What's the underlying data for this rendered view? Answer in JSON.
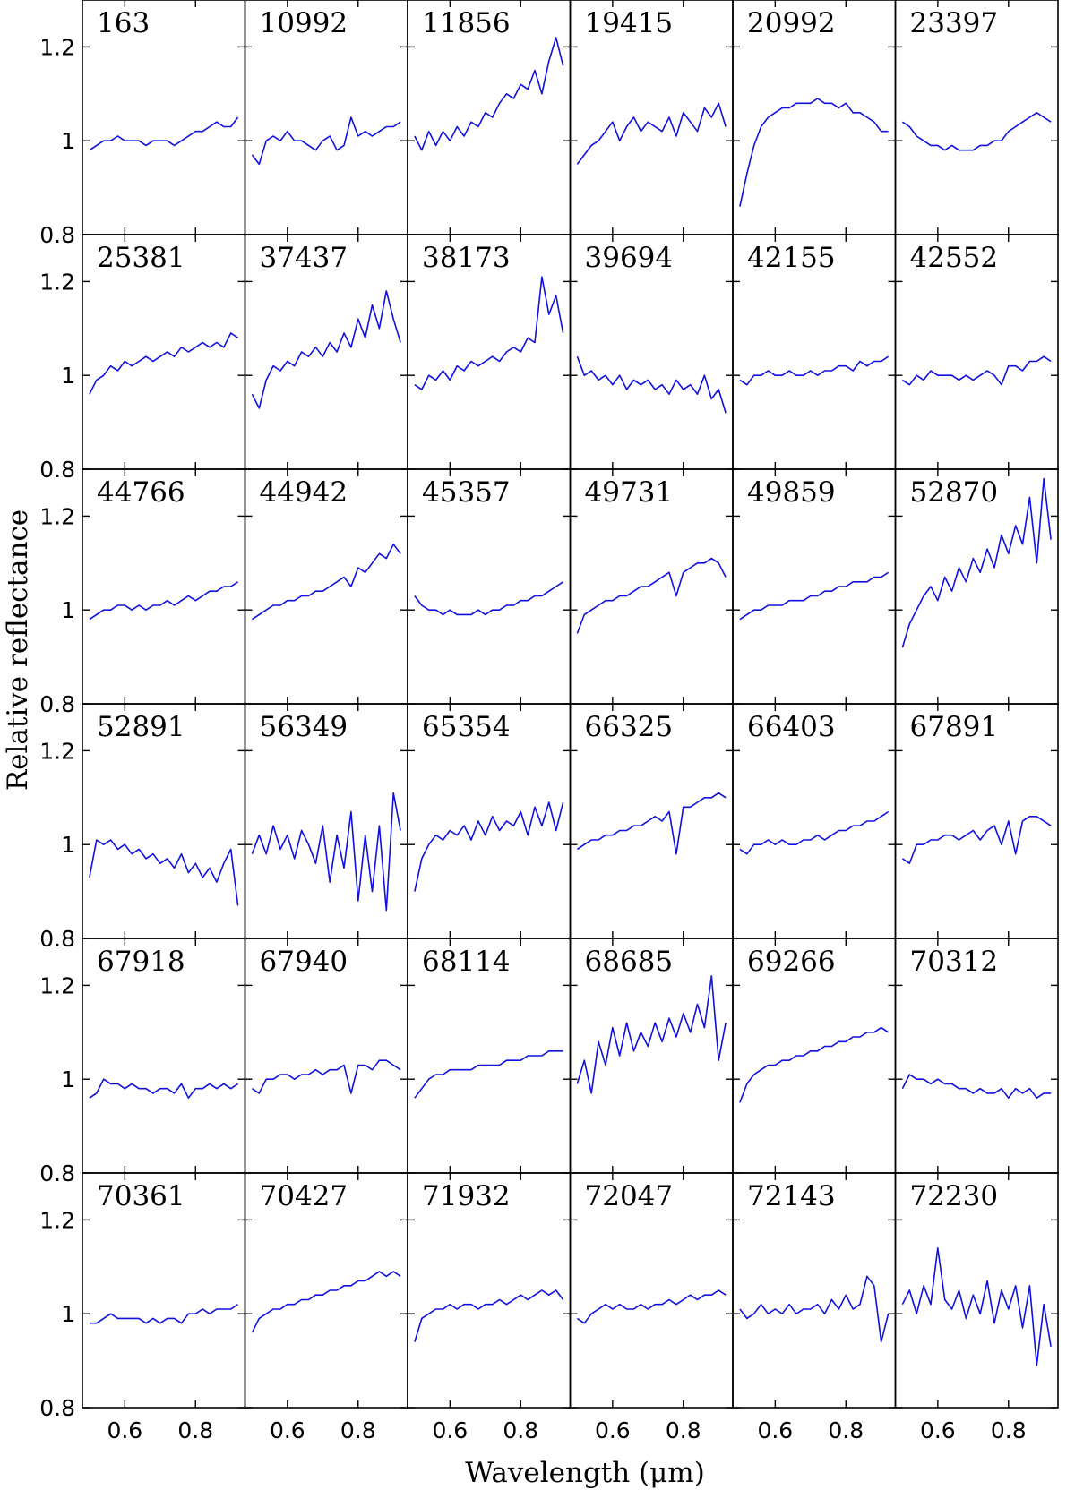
{
  "chart_data": {
    "type": "line",
    "layout": "small-multiples",
    "grid": false,
    "rows": 6,
    "cols": 6,
    "xlabel": "Wavelength (μm)",
    "ylabel": "Relative reflectance",
    "xlim": [
      0.48,
      0.94
    ],
    "ylim": [
      0.8,
      1.3
    ],
    "xticks": [
      0.6,
      0.8
    ],
    "xtick_labels": [
      "0.6",
      "0.8"
    ],
    "yticks": [
      0.8,
      1.0,
      1.2
    ],
    "ytick_labels": [
      "0.8",
      "1",
      "1.2"
    ],
    "line_color": "#1010e0",
    "x": [
      0.5,
      0.52,
      0.54,
      0.56,
      0.58,
      0.6,
      0.62,
      0.64,
      0.66,
      0.68,
      0.7,
      0.72,
      0.74,
      0.76,
      0.78,
      0.8,
      0.82,
      0.84,
      0.86,
      0.88,
      0.9,
      0.92
    ],
    "panels": [
      {
        "name": "163",
        "values": [
          0.98,
          0.99,
          1.0,
          1.0,
          1.01,
          1.0,
          1.0,
          1.0,
          0.99,
          1.0,
          1.0,
          1.0,
          0.99,
          1.0,
          1.01,
          1.02,
          1.02,
          1.03,
          1.04,
          1.03,
          1.03,
          1.05
        ]
      },
      {
        "name": "10992",
        "values": [
          0.97,
          0.95,
          1.0,
          1.01,
          1.0,
          1.02,
          1.0,
          1.0,
          0.99,
          0.98,
          1.0,
          1.01,
          0.98,
          0.99,
          1.05,
          1.01,
          1.02,
          1.01,
          1.02,
          1.03,
          1.03,
          1.04
        ]
      },
      {
        "name": "11856",
        "values": [
          1.01,
          0.98,
          1.02,
          0.99,
          1.02,
          1.0,
          1.03,
          1.01,
          1.04,
          1.03,
          1.06,
          1.05,
          1.08,
          1.1,
          1.09,
          1.12,
          1.11,
          1.15,
          1.1,
          1.17,
          1.22,
          1.16
        ]
      },
      {
        "name": "19415",
        "values": [
          0.95,
          0.97,
          0.99,
          1.0,
          1.02,
          1.04,
          1.0,
          1.03,
          1.05,
          1.02,
          1.04,
          1.03,
          1.02,
          1.05,
          1.01,
          1.06,
          1.04,
          1.02,
          1.07,
          1.05,
          1.08,
          1.03
        ]
      },
      {
        "name": "20992",
        "values": [
          0.86,
          0.93,
          0.99,
          1.03,
          1.05,
          1.06,
          1.07,
          1.07,
          1.08,
          1.08,
          1.08,
          1.09,
          1.08,
          1.08,
          1.07,
          1.08,
          1.06,
          1.06,
          1.05,
          1.04,
          1.02,
          1.02
        ]
      },
      {
        "name": "23397",
        "values": [
          1.04,
          1.03,
          1.01,
          1.0,
          0.99,
          0.99,
          0.98,
          0.99,
          0.98,
          0.98,
          0.98,
          0.99,
          0.99,
          1.0,
          1.0,
          1.02,
          1.03,
          1.04,
          1.05,
          1.06,
          1.05,
          1.04
        ]
      },
      {
        "name": "25381",
        "values": [
          0.96,
          0.99,
          1.0,
          1.02,
          1.01,
          1.03,
          1.02,
          1.03,
          1.04,
          1.03,
          1.04,
          1.05,
          1.04,
          1.06,
          1.05,
          1.06,
          1.07,
          1.06,
          1.07,
          1.06,
          1.09,
          1.08
        ]
      },
      {
        "name": "37437",
        "values": [
          0.96,
          0.93,
          0.99,
          1.02,
          1.01,
          1.03,
          1.02,
          1.05,
          1.04,
          1.06,
          1.04,
          1.07,
          1.05,
          1.09,
          1.06,
          1.12,
          1.08,
          1.15,
          1.1,
          1.18,
          1.12,
          1.07
        ]
      },
      {
        "name": "38173",
        "values": [
          0.98,
          0.97,
          1.0,
          0.99,
          1.01,
          0.99,
          1.02,
          1.01,
          1.03,
          1.02,
          1.03,
          1.04,
          1.03,
          1.05,
          1.06,
          1.05,
          1.08,
          1.07,
          1.21,
          1.13,
          1.17,
          1.09
        ]
      },
      {
        "name": "39694",
        "values": [
          1.04,
          1.0,
          1.01,
          0.99,
          1.0,
          0.98,
          1.0,
          0.97,
          0.99,
          0.98,
          0.99,
          0.97,
          0.98,
          0.96,
          0.99,
          0.97,
          0.98,
          0.96,
          1.0,
          0.95,
          0.97,
          0.92
        ]
      },
      {
        "name": "42155",
        "values": [
          0.99,
          0.98,
          1.0,
          1.0,
          1.01,
          1.0,
          1.0,
          1.01,
          1.0,
          1.0,
          1.01,
          1.0,
          1.01,
          1.01,
          1.02,
          1.02,
          1.01,
          1.03,
          1.02,
          1.03,
          1.03,
          1.04
        ]
      },
      {
        "name": "42552",
        "values": [
          0.99,
          0.98,
          1.0,
          0.99,
          1.01,
          1.0,
          1.0,
          1.0,
          0.99,
          1.0,
          0.99,
          1.0,
          1.01,
          1.0,
          0.98,
          1.02,
          1.02,
          1.01,
          1.03,
          1.03,
          1.04,
          1.03
        ]
      },
      {
        "name": "44766",
        "values": [
          0.98,
          0.99,
          1.0,
          1.0,
          1.01,
          1.01,
          1.0,
          1.01,
          1.0,
          1.01,
          1.01,
          1.02,
          1.01,
          1.02,
          1.03,
          1.02,
          1.03,
          1.04,
          1.04,
          1.05,
          1.05,
          1.06
        ]
      },
      {
        "name": "44942",
        "values": [
          0.98,
          0.99,
          1.0,
          1.01,
          1.01,
          1.02,
          1.02,
          1.03,
          1.03,
          1.04,
          1.04,
          1.05,
          1.06,
          1.07,
          1.05,
          1.09,
          1.08,
          1.1,
          1.12,
          1.11,
          1.14,
          1.12
        ]
      },
      {
        "name": "45357",
        "values": [
          1.03,
          1.01,
          1.0,
          1.0,
          0.99,
          1.0,
          0.99,
          0.99,
          0.99,
          1.0,
          0.99,
          1.0,
          1.0,
          1.01,
          1.01,
          1.02,
          1.02,
          1.03,
          1.03,
          1.04,
          1.05,
          1.06
        ]
      },
      {
        "name": "49731",
        "values": [
          0.95,
          0.99,
          1.0,
          1.01,
          1.02,
          1.02,
          1.03,
          1.03,
          1.04,
          1.05,
          1.05,
          1.06,
          1.07,
          1.08,
          1.03,
          1.08,
          1.09,
          1.1,
          1.1,
          1.11,
          1.1,
          1.07
        ]
      },
      {
        "name": "49859",
        "values": [
          0.98,
          0.99,
          1.0,
          1.0,
          1.01,
          1.01,
          1.01,
          1.02,
          1.02,
          1.02,
          1.03,
          1.03,
          1.04,
          1.04,
          1.05,
          1.05,
          1.06,
          1.06,
          1.06,
          1.07,
          1.07,
          1.08
        ]
      },
      {
        "name": "52870",
        "values": [
          0.92,
          0.97,
          1.0,
          1.03,
          1.05,
          1.02,
          1.07,
          1.04,
          1.09,
          1.06,
          1.11,
          1.08,
          1.13,
          1.09,
          1.16,
          1.12,
          1.18,
          1.14,
          1.24,
          1.1,
          1.28,
          1.15
        ]
      },
      {
        "name": "52891",
        "values": [
          0.93,
          1.01,
          1.0,
          1.01,
          0.99,
          1.0,
          0.98,
          0.99,
          0.97,
          0.98,
          0.96,
          0.97,
          0.95,
          0.98,
          0.94,
          0.96,
          0.93,
          0.95,
          0.92,
          0.96,
          0.99,
          0.87
        ]
      },
      {
        "name": "56349",
        "values": [
          0.98,
          1.02,
          0.98,
          1.04,
          0.99,
          1.02,
          0.97,
          1.03,
          1.0,
          0.96,
          1.04,
          0.92,
          1.02,
          0.95,
          1.07,
          0.88,
          1.02,
          0.9,
          1.04,
          0.86,
          1.11,
          1.03
        ]
      },
      {
        "name": "65354",
        "values": [
          0.9,
          0.97,
          1.0,
          1.02,
          1.01,
          1.03,
          1.02,
          1.04,
          1.01,
          1.05,
          1.02,
          1.06,
          1.03,
          1.05,
          1.04,
          1.07,
          1.02,
          1.08,
          1.04,
          1.09,
          1.03,
          1.09
        ]
      },
      {
        "name": "66325",
        "values": [
          0.99,
          1.0,
          1.01,
          1.01,
          1.02,
          1.02,
          1.03,
          1.03,
          1.04,
          1.04,
          1.05,
          1.06,
          1.05,
          1.07,
          0.98,
          1.08,
          1.08,
          1.09,
          1.1,
          1.1,
          1.11,
          1.1
        ]
      },
      {
        "name": "66403",
        "values": [
          0.99,
          0.98,
          1.0,
          1.0,
          1.01,
          1.0,
          1.01,
          1.0,
          1.0,
          1.01,
          1.01,
          1.02,
          1.01,
          1.02,
          1.03,
          1.03,
          1.04,
          1.04,
          1.05,
          1.05,
          1.06,
          1.07
        ]
      },
      {
        "name": "67891",
        "values": [
          0.97,
          0.96,
          1.0,
          1.0,
          1.01,
          1.01,
          1.02,
          1.02,
          1.01,
          1.02,
          1.03,
          1.01,
          1.03,
          1.04,
          1.0,
          1.05,
          0.98,
          1.05,
          1.06,
          1.06,
          1.05,
          1.04
        ]
      },
      {
        "name": "67918",
        "values": [
          0.96,
          0.97,
          1.0,
          0.99,
          0.99,
          0.98,
          0.99,
          0.98,
          0.98,
          0.97,
          0.98,
          0.98,
          0.97,
          0.99,
          0.96,
          0.98,
          0.98,
          0.99,
          0.98,
          0.99,
          0.98,
          0.99
        ]
      },
      {
        "name": "67940",
        "values": [
          0.98,
          0.97,
          1.0,
          1.0,
          1.01,
          1.01,
          1.0,
          1.01,
          1.01,
          1.02,
          1.01,
          1.02,
          1.02,
          1.03,
          0.97,
          1.03,
          1.03,
          1.02,
          1.04,
          1.04,
          1.03,
          1.02
        ]
      },
      {
        "name": "68114",
        "values": [
          0.96,
          0.98,
          1.0,
          1.01,
          1.01,
          1.02,
          1.02,
          1.02,
          1.02,
          1.03,
          1.03,
          1.03,
          1.03,
          1.04,
          1.04,
          1.04,
          1.05,
          1.05,
          1.05,
          1.06,
          1.06,
          1.06
        ]
      },
      {
        "name": "68685",
        "values": [
          0.99,
          1.04,
          0.97,
          1.08,
          1.03,
          1.11,
          1.05,
          1.12,
          1.06,
          1.1,
          1.07,
          1.12,
          1.08,
          1.13,
          1.09,
          1.14,
          1.1,
          1.16,
          1.11,
          1.22,
          1.04,
          1.12
        ]
      },
      {
        "name": "69266",
        "values": [
          0.95,
          0.99,
          1.01,
          1.02,
          1.03,
          1.03,
          1.04,
          1.04,
          1.05,
          1.05,
          1.06,
          1.06,
          1.07,
          1.07,
          1.08,
          1.08,
          1.09,
          1.09,
          1.1,
          1.1,
          1.11,
          1.1
        ]
      },
      {
        "name": "70312",
        "values": [
          0.98,
          1.01,
          1.0,
          1.0,
          0.99,
          1.0,
          0.99,
          0.99,
          0.98,
          0.98,
          0.97,
          0.98,
          0.97,
          0.97,
          0.98,
          0.96,
          0.98,
          0.97,
          0.98,
          0.96,
          0.97,
          0.97
        ]
      },
      {
        "name": "70361",
        "values": [
          0.98,
          0.98,
          0.99,
          1.0,
          0.99,
          0.99,
          0.99,
          0.99,
          0.98,
          0.99,
          0.98,
          0.99,
          0.99,
          0.98,
          1.0,
          1.0,
          1.01,
          1.0,
          1.01,
          1.01,
          1.01,
          1.02
        ]
      },
      {
        "name": "70427",
        "values": [
          0.96,
          0.99,
          1.0,
          1.01,
          1.01,
          1.02,
          1.02,
          1.03,
          1.03,
          1.04,
          1.04,
          1.05,
          1.05,
          1.06,
          1.06,
          1.07,
          1.07,
          1.08,
          1.09,
          1.08,
          1.09,
          1.08
        ]
      },
      {
        "name": "71932",
        "values": [
          0.94,
          0.99,
          1.0,
          1.01,
          1.01,
          1.02,
          1.01,
          1.02,
          1.02,
          1.01,
          1.02,
          1.02,
          1.03,
          1.02,
          1.03,
          1.04,
          1.03,
          1.04,
          1.05,
          1.04,
          1.05,
          1.03
        ]
      },
      {
        "name": "72047",
        "values": [
          0.99,
          0.98,
          1.0,
          1.01,
          1.02,
          1.01,
          1.02,
          1.01,
          1.01,
          1.02,
          1.01,
          1.02,
          1.02,
          1.03,
          1.02,
          1.03,
          1.04,
          1.03,
          1.04,
          1.04,
          1.05,
          1.04
        ]
      },
      {
        "name": "72143",
        "values": [
          1.01,
          0.99,
          1.0,
          1.02,
          1.0,
          1.01,
          1.0,
          1.02,
          1.0,
          1.01,
          1.01,
          1.02,
          1.0,
          1.03,
          1.01,
          1.04,
          1.01,
          1.02,
          1.08,
          1.06,
          0.94,
          1.0
        ]
      },
      {
        "name": "72230",
        "values": [
          1.02,
          1.05,
          1.0,
          1.06,
          1.02,
          1.14,
          1.03,
          1.01,
          1.05,
          0.99,
          1.04,
          1.0,
          1.07,
          0.98,
          1.05,
          1.01,
          1.06,
          0.97,
          1.06,
          0.89,
          1.02,
          0.93
        ]
      }
    ]
  }
}
